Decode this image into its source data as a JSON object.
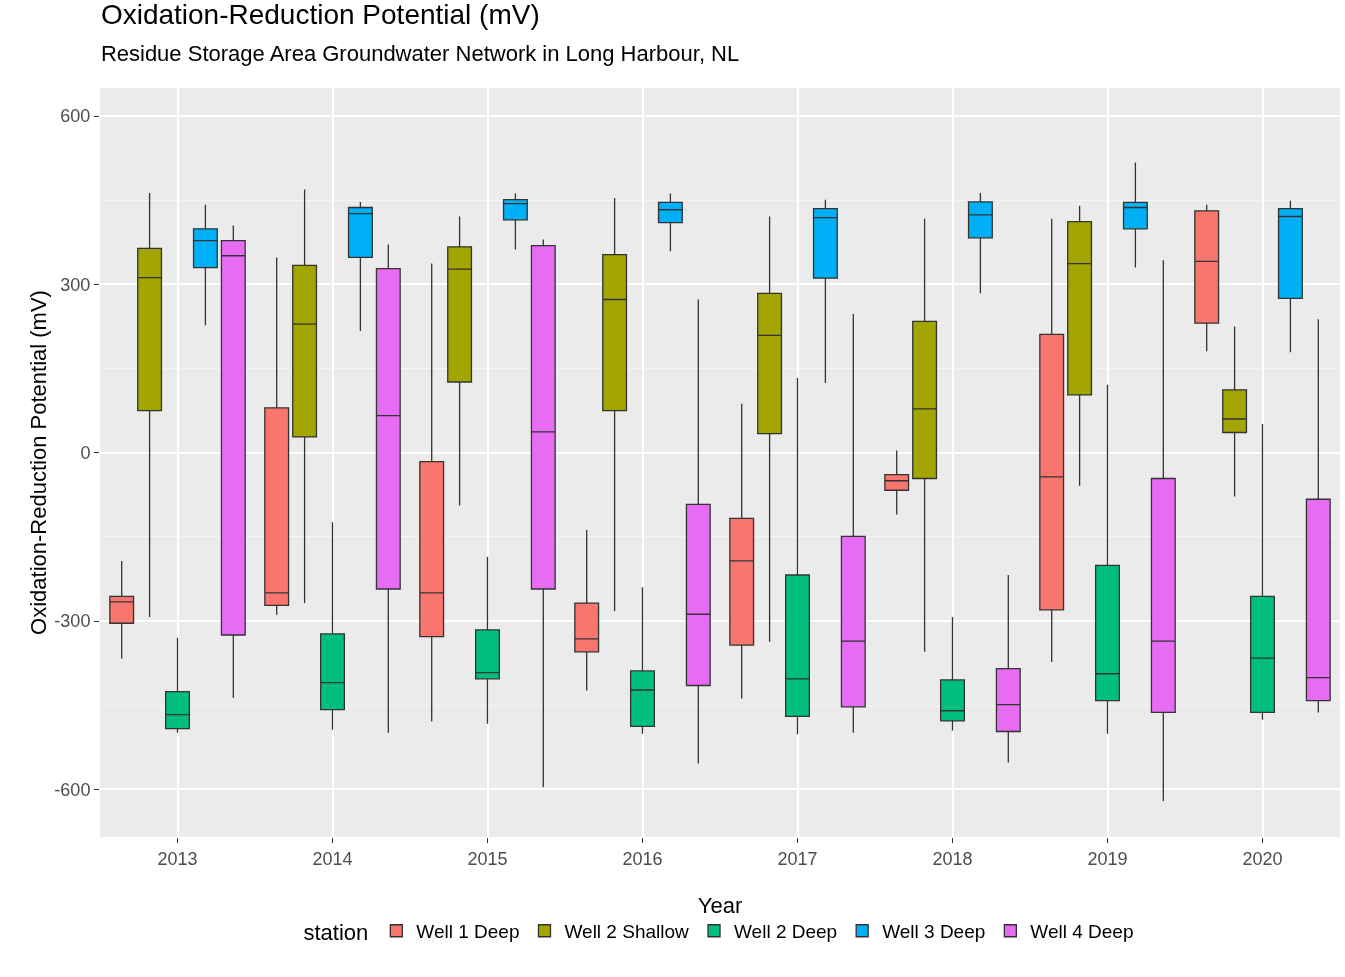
{
  "chart_data": {
    "type": "box",
    "title": "Oxidation-Reduction Potential (mV)",
    "subtitle": "Residue Storage Area Groundwater Network in Long Harbour, NL",
    "xlabel": "Year",
    "ylabel": "Oxidation-Reduction Potential (mV)",
    "legend_title": "station",
    "categories": [
      "2013",
      "2014",
      "2015",
      "2016",
      "2017",
      "2018",
      "2019",
      "2020"
    ],
    "ylim": [
      -685,
      650
    ],
    "yticks": [
      -600,
      -300,
      0,
      300,
      600
    ],
    "grid": true,
    "legend": "bottom",
    "series": [
      {
        "name": "Well 1 Deep",
        "color": "#f8766d",
        "boxes": [
          {
            "low": -367,
            "q1": -304,
            "median": -266,
            "q3": -256,
            "high": -193
          },
          {
            "low": -289,
            "q1": -272,
            "median": -250,
            "q3": 80,
            "high": 348
          },
          {
            "low": -479,
            "q1": -328,
            "median": -250,
            "q3": -16,
            "high": 337
          },
          {
            "low": -424,
            "q1": -355,
            "median": -332,
            "q3": -268,
            "high": -138
          },
          {
            "low": -438,
            "q1": -343,
            "median": -193,
            "q3": -117,
            "high": 87
          },
          {
            "low": -110,
            "q1": -67,
            "median": -50,
            "q3": -39,
            "high": 4
          },
          {
            "low": -373,
            "q1": -280,
            "median": -43,
            "q3": 211,
            "high": 417
          },
          {
            "low": 181,
            "q1": 231,
            "median": 341,
            "q3": 431,
            "high": 442
          }
        ]
      },
      {
        "name": "Well 2 Shallow",
        "color": "#a3a500",
        "boxes": [
          {
            "low": -293,
            "q1": 75,
            "median": 312,
            "q3": 364,
            "high": 463
          },
          {
            "low": -268,
            "q1": 28,
            "median": 229,
            "q3": 334,
            "high": 469
          },
          {
            "low": -94,
            "q1": 126,
            "median": 327,
            "q3": 367,
            "high": 421
          },
          {
            "low": -282,
            "q1": 75,
            "median": 273,
            "q3": 353,
            "high": 454
          },
          {
            "low": -337,
            "q1": 34,
            "median": 209,
            "q3": 284,
            "high": 421
          },
          {
            "low": -355,
            "q1": -46,
            "median": 78,
            "q3": 234,
            "high": 417
          },
          {
            "low": -59,
            "q1": 103,
            "median": 337,
            "q3": 412,
            "high": 440
          },
          {
            "low": -78,
            "q1": 36,
            "median": 60,
            "q3": 112,
            "high": 225
          }
        ]
      },
      {
        "name": "Well 2 Deep",
        "color": "#00bf7d",
        "boxes": [
          {
            "low": -499,
            "q1": -492,
            "median": -467,
            "q3": -426,
            "high": -330
          },
          {
            "low": -494,
            "q1": -458,
            "median": -410,
            "q3": -323,
            "high": -124
          },
          {
            "low": -483,
            "q1": -403,
            "median": -392,
            "q3": -316,
            "high": -186
          },
          {
            "low": -501,
            "q1": -488,
            "median": -423,
            "q3": -389,
            "high": -240
          },
          {
            "low": -502,
            "q1": -470,
            "median": -403,
            "q3": -218,
            "high": 133
          },
          {
            "low": -495,
            "q1": -478,
            "median": -460,
            "q3": -405,
            "high": -293
          },
          {
            "low": -501,
            "q1": -442,
            "median": -394,
            "q3": -201,
            "high": 121
          },
          {
            "low": -476,
            "q1": -463,
            "median": -366,
            "q3": -256,
            "high": 51
          }
        ]
      },
      {
        "name": "Well 3 Deep",
        "color": "#00b0f6",
        "boxes": [
          {
            "low": 227,
            "q1": 330,
            "median": 378,
            "q3": 399,
            "high": 442
          },
          {
            "low": 217,
            "q1": 348,
            "median": 426,
            "q3": 437,
            "high": 447
          },
          {
            "low": 362,
            "q1": 415,
            "median": 444,
            "q3": 451,
            "high": 462
          },
          {
            "low": 359,
            "q1": 410,
            "median": 433,
            "q3": 446,
            "high": 462
          },
          {
            "low": 124,
            "q1": 311,
            "median": 419,
            "q3": 435,
            "high": 451
          },
          {
            "low": 284,
            "q1": 383,
            "median": 424,
            "q3": 447,
            "high": 463
          },
          {
            "low": 330,
            "q1": 399,
            "median": 437,
            "q3": 446,
            "high": 517
          },
          {
            "low": 179,
            "q1": 275,
            "median": 421,
            "q3": 435,
            "high": 449
          }
        ]
      },
      {
        "name": "Well 4 Deep",
        "color": "#e76bf3",
        "boxes": [
          {
            "low": -437,
            "q1": -325,
            "median": 351,
            "q3": 378,
            "high": 405
          },
          {
            "low": -499,
            "q1": -243,
            "median": 66,
            "q3": 328,
            "high": 371
          },
          {
            "low": -596,
            "q1": -243,
            "median": 37,
            "q3": 369,
            "high": 380
          },
          {
            "low": -554,
            "q1": -415,
            "median": -288,
            "q3": -92,
            "high": 273
          },
          {
            "low": -499,
            "q1": -453,
            "median": -336,
            "q3": -149,
            "high": 247
          },
          {
            "low": -552,
            "q1": -497,
            "median": -449,
            "q3": -385,
            "high": -218
          },
          {
            "low": -621,
            "q1": -463,
            "median": -336,
            "q3": -46,
            "high": 343
          },
          {
            "low": -463,
            "q1": -442,
            "median": -401,
            "q3": -83,
            "high": 238
          }
        ]
      }
    ]
  }
}
